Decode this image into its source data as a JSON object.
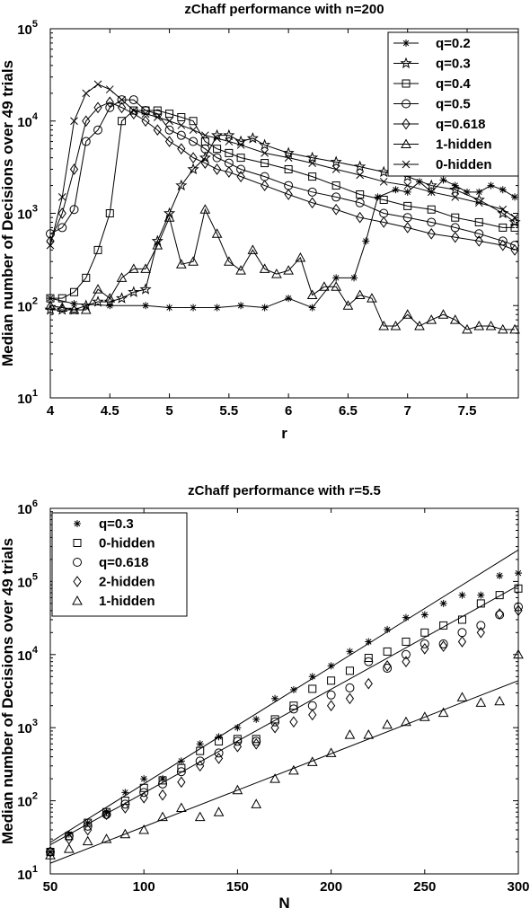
{
  "chart_data": [
    {
      "type": "line",
      "title": "zChaff performance with n=200",
      "xlabel": "r",
      "ylabel": "Median number of Decisions over 49 trials",
      "xlim": [
        4,
        7.93
      ],
      "ylim": [
        10,
        100000
      ],
      "yscale": "log",
      "xticks": [
        "4",
        "4.5",
        "5",
        "5.5",
        "6",
        "6.5",
        "7",
        "7.5"
      ],
      "yticks": [
        {
          "base": "10",
          "exp": "1"
        },
        {
          "base": "10",
          "exp": "2"
        },
        {
          "base": "10",
          "exp": "3"
        },
        {
          "base": "10",
          "exp": "4"
        },
        {
          "base": "10",
          "exp": "5"
        }
      ],
      "grid": false,
      "legend_position": "top-right",
      "series": [
        {
          "name": "q=0.2",
          "marker": "asterisk",
          "x": [
            4.0,
            4.2,
            4.5,
            4.8,
            5.0,
            5.2,
            5.4,
            5.6,
            5.8,
            6.0,
            6.2,
            6.4,
            6.55,
            6.65,
            6.75,
            6.9,
            7.0,
            7.1,
            7.2,
            7.3,
            7.4,
            7.5,
            7.6,
            7.7,
            7.8,
            7.9
          ],
          "y": [
            120,
            105,
            100,
            100,
            95,
            95,
            95,
            100,
            95,
            120,
            95,
            200,
            200,
            500,
            1500,
            1800,
            1700,
            2200,
            1700,
            2300,
            2000,
            1700,
            1700,
            2000,
            1800,
            1500
          ]
        },
        {
          "name": "q=0.3",
          "marker": "star",
          "x": [
            4.0,
            4.1,
            4.2,
            4.3,
            4.4,
            4.5,
            4.6,
            4.7,
            4.8,
            4.9,
            5.0,
            5.1,
            5.2,
            5.3,
            5.4,
            5.5,
            5.6,
            5.7,
            5.8,
            6.0,
            6.2,
            6.4,
            6.6,
            6.8,
            7.0,
            7.2,
            7.4,
            7.6,
            7.8,
            7.9
          ],
          "y": [
            90,
            90,
            90,
            100,
            110,
            110,
            120,
            140,
            150,
            500,
            1000,
            2000,
            3000,
            4000,
            7000,
            7000,
            6000,
            6500,
            5500,
            4500,
            4000,
            3600,
            3200,
            2800,
            2500,
            2000,
            1800,
            1400,
            1000,
            800
          ]
        },
        {
          "name": "q=0.4",
          "marker": "square",
          "x": [
            4.0,
            4.1,
            4.2,
            4.3,
            4.4,
            4.5,
            4.6,
            4.7,
            4.8,
            4.9,
            5.0,
            5.1,
            5.2,
            5.3,
            5.4,
            5.5,
            5.6,
            5.8,
            6.0,
            6.2,
            6.4,
            6.6,
            6.8,
            7.0,
            7.2,
            7.4,
            7.6,
            7.8,
            7.9
          ],
          "y": [
            120,
            120,
            140,
            200,
            400,
            1000,
            10000,
            13000,
            13000,
            13000,
            12000,
            11000,
            10000,
            6000,
            5000,
            4500,
            4000,
            3500,
            3000,
            2500,
            2000,
            1600,
            1400,
            1200,
            1100,
            900,
            800,
            700,
            700
          ]
        },
        {
          "name": "q=0.5",
          "marker": "circle",
          "x": [
            4.0,
            4.1,
            4.2,
            4.3,
            4.4,
            4.5,
            4.6,
            4.7,
            4.8,
            4.9,
            5.0,
            5.1,
            5.2,
            5.3,
            5.4,
            5.5,
            5.6,
            5.8,
            6.0,
            6.2,
            6.4,
            6.6,
            6.8,
            7.0,
            7.2,
            7.4,
            7.6,
            7.8,
            7.9
          ],
          "y": [
            600,
            700,
            1100,
            6000,
            8000,
            14000,
            17000,
            17000,
            13000,
            12000,
            8000,
            7000,
            6000,
            5000,
            4000,
            3500,
            3000,
            2500,
            2000,
            1700,
            1500,
            1300,
            1000,
            900,
            800,
            700,
            600,
            500,
            450
          ]
        },
        {
          "name": "q=0.618",
          "marker": "diamond",
          "x": [
            4.0,
            4.1,
            4.2,
            4.3,
            4.4,
            4.5,
            4.6,
            4.7,
            4.8,
            4.9,
            5.0,
            5.1,
            5.2,
            5.3,
            5.4,
            5.5,
            5.6,
            5.8,
            6.0,
            6.2,
            6.4,
            6.6,
            6.8,
            7.0,
            7.2,
            7.4,
            7.6,
            7.8,
            7.9
          ],
          "y": [
            500,
            1000,
            3000,
            10000,
            14000,
            16000,
            14000,
            12000,
            10000,
            8000,
            6000,
            5000,
            4000,
            3500,
            3000,
            2800,
            2500,
            2000,
            1600,
            1300,
            1100,
            900,
            800,
            700,
            600,
            550,
            500,
            450,
            400
          ]
        },
        {
          "name": "1-hidden",
          "marker": "triangle",
          "x": [
            4.0,
            4.1,
            4.2,
            4.3,
            4.4,
            4.5,
            4.6,
            4.7,
            4.8,
            4.9,
            5.0,
            5.1,
            5.2,
            5.3,
            5.4,
            5.5,
            5.6,
            5.7,
            5.8,
            5.9,
            6.0,
            6.1,
            6.2,
            6.3,
            6.4,
            6.5,
            6.6,
            6.7,
            6.8,
            6.9,
            7.0,
            7.1,
            7.2,
            7.3,
            7.4,
            7.5,
            7.6,
            7.7,
            7.8,
            7.9
          ],
          "y": [
            100,
            95,
            90,
            90,
            150,
            120,
            200,
            250,
            250,
            450,
            900,
            280,
            300,
            1100,
            600,
            300,
            240,
            400,
            250,
            220,
            240,
            330,
            130,
            160,
            160,
            100,
            130,
            120,
            60,
            60,
            80,
            60,
            70,
            80,
            70,
            55,
            60,
            60,
            55,
            55
          ]
        },
        {
          "name": "0-hidden",
          "marker": "x",
          "x": [
            4.0,
            4.1,
            4.2,
            4.3,
            4.4,
            4.5,
            4.6,
            4.7,
            4.8,
            4.9,
            5.0,
            5.1,
            5.2,
            5.3,
            5.4,
            5.5,
            5.6,
            5.8,
            6.0,
            6.2,
            6.4,
            6.6,
            6.8,
            7.0,
            7.2,
            7.4,
            7.6,
            7.8,
            7.9
          ],
          "y": [
            450,
            1500,
            10000,
            20000,
            25000,
            22000,
            17000,
            13000,
            12000,
            11000,
            10000,
            9000,
            8000,
            7000,
            6500,
            6000,
            5500,
            4500,
            4000,
            3500,
            3000,
            2600,
            2200,
            2000,
            1700,
            1500,
            1300,
            1100,
            900
          ]
        }
      ]
    },
    {
      "type": "scatter",
      "title": "zChaff performance with r=5.5",
      "xlabel": "N",
      "ylabel": "Median number of Decisions over 49 trials",
      "xlim": [
        50,
        300
      ],
      "ylim": [
        10,
        1000000
      ],
      "yscale": "log",
      "xticks": [
        "50",
        "100",
        "150",
        "200",
        "250",
        "300"
      ],
      "yticks": [
        {
          "base": "10",
          "exp": "1"
        },
        {
          "base": "10",
          "exp": "2"
        },
        {
          "base": "10",
          "exp": "3"
        },
        {
          "base": "10",
          "exp": "4"
        },
        {
          "base": "10",
          "exp": "5"
        },
        {
          "base": "10",
          "exp": "6"
        }
      ],
      "grid": false,
      "legend_position": "top-left",
      "series": [
        {
          "name": "q=0.3",
          "marker": "asterisk",
          "x": [
            50,
            60,
            70,
            80,
            90,
            100,
            110,
            120,
            130,
            140,
            150,
            160,
            170,
            180,
            190,
            200,
            210,
            220,
            230,
            240,
            250,
            260,
            270,
            280,
            290,
            300
          ],
          "y": [
            20,
            35,
            50,
            70,
            130,
            200,
            200,
            350,
            600,
            750,
            1000,
            1300,
            2500,
            3300,
            5000,
            7000,
            11000,
            15000,
            22000,
            32000,
            35000,
            50000,
            65000,
            65000,
            120000,
            130000
          ]
        },
        {
          "name": "0-hidden",
          "marker": "square",
          "x": [
            50,
            60,
            70,
            80,
            90,
            100,
            110,
            120,
            130,
            140,
            150,
            160,
            170,
            180,
            190,
            200,
            210,
            220,
            230,
            240,
            250,
            260,
            270,
            280,
            290,
            300
          ],
          "y": [
            20,
            33,
            50,
            70,
            100,
            150,
            190,
            280,
            480,
            650,
            700,
            700,
            1300,
            2000,
            3400,
            4400,
            6000,
            9000,
            11000,
            15000,
            20000,
            25000,
            30000,
            50000,
            65000,
            80000
          ]
        },
        {
          "name": "q=0.618",
          "marker": "circle",
          "x": [
            50,
            60,
            70,
            80,
            90,
            100,
            110,
            120,
            130,
            140,
            150,
            160,
            170,
            180,
            190,
            200,
            210,
            220,
            230,
            240,
            250,
            260,
            270,
            280,
            290,
            300
          ],
          "y": [
            20,
            33,
            45,
            65,
            90,
            130,
            170,
            250,
            350,
            450,
            650,
            650,
            1200,
            1800,
            2000,
            2800,
            3500,
            8000,
            6500,
            10000,
            14000,
            14000,
            20000,
            25000,
            35000,
            45000
          ]
        },
        {
          "name": "2-hidden",
          "marker": "diamond",
          "x": [
            50,
            60,
            70,
            80,
            90,
            100,
            110,
            120,
            130,
            140,
            150,
            160,
            170,
            180,
            190,
            200,
            210,
            220,
            230,
            240,
            250,
            260,
            270,
            280,
            290,
            300
          ],
          "y": [
            20,
            30,
            40,
            65,
            80,
            110,
            120,
            180,
            300,
            380,
            550,
            600,
            1000,
            1200,
            1500,
            2000,
            2500,
            4000,
            7000,
            8000,
            12000,
            13000,
            15000,
            20000,
            36000,
            40000
          ]
        },
        {
          "name": "1-hidden",
          "marker": "triangle",
          "x": [
            50,
            60,
            70,
            80,
            90,
            100,
            110,
            120,
            130,
            140,
            150,
            160,
            170,
            180,
            190,
            200,
            210,
            220,
            230,
            240,
            250,
            260,
            270,
            280,
            290,
            300
          ],
          "y": [
            18,
            22,
            28,
            30,
            35,
            40,
            60,
            80,
            60,
            70,
            140,
            90,
            200,
            260,
            340,
            450,
            800,
            800,
            1100,
            1200,
            1400,
            1600,
            2600,
            2200,
            2300,
            10000
          ]
        }
      ],
      "fit_lines": [
        {
          "x": [
            50,
            300
          ],
          "y": [
            27,
            270000
          ]
        },
        {
          "x": [
            50,
            300
          ],
          "y": [
            25,
            88000
          ]
        },
        {
          "x": [
            50,
            300
          ],
          "y": [
            14,
            4400
          ]
        }
      ]
    }
  ]
}
